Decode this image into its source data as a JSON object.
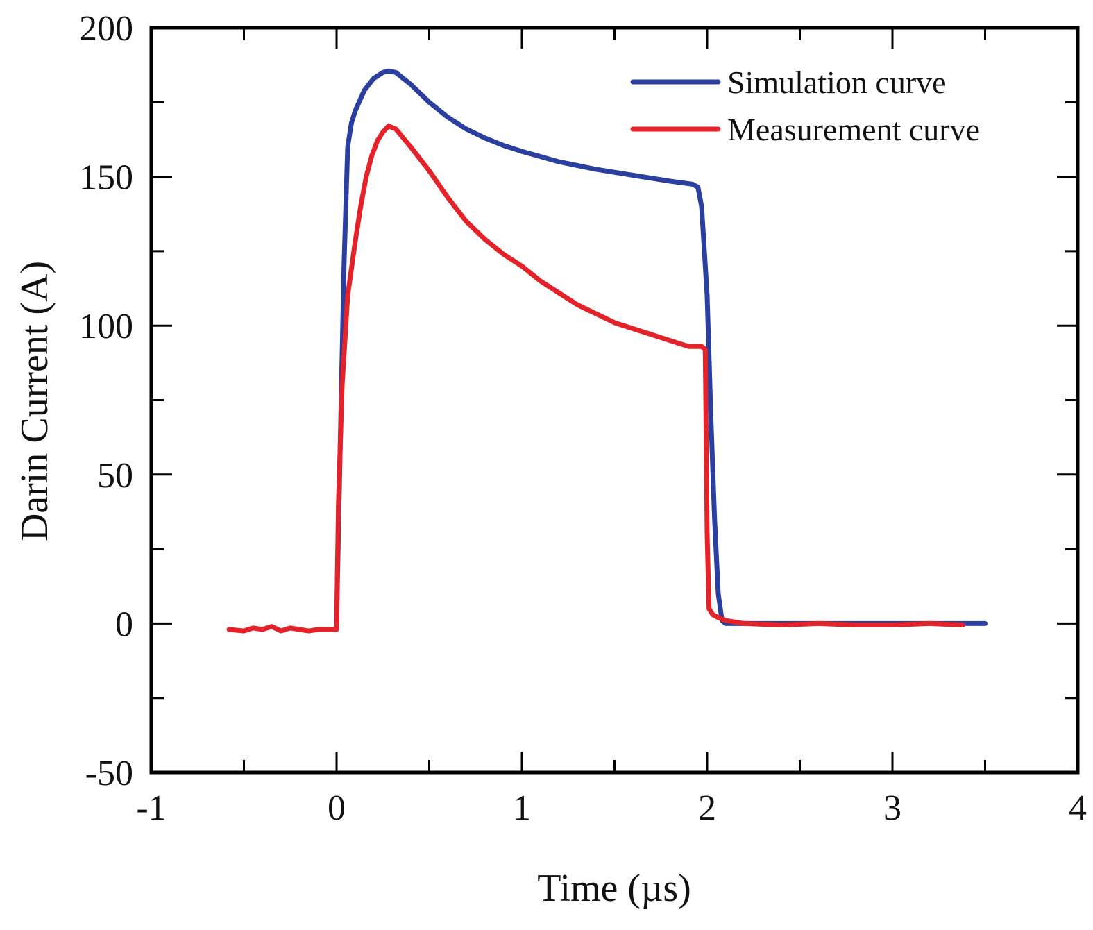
{
  "chart_data": {
    "type": "line",
    "title": "",
    "xlabel": "Time (µs)",
    "ylabel": "Darin Current (A)",
    "xlim": [
      -1,
      4
    ],
    "ylim": [
      -50,
      200
    ],
    "xticks": [
      -1,
      0,
      1,
      2,
      3,
      4
    ],
    "xtick_labels": [
      "-1",
      "0",
      "1",
      "2",
      "3",
      "4"
    ],
    "yticks": [
      -50,
      0,
      50,
      100,
      150,
      200
    ],
    "ytick_labels": [
      "-50",
      "0",
      "50",
      "100",
      "150",
      "200"
    ],
    "x_minor_step": 0.5,
    "y_minor_step": 25,
    "grid": false,
    "legend_position": "top-right",
    "series": [
      {
        "name": "Simulation curve",
        "color": "#2b3fa0",
        "x": [
          0.0,
          0.02,
          0.04,
          0.06,
          0.08,
          0.1,
          0.15,
          0.2,
          0.25,
          0.28,
          0.32,
          0.4,
          0.5,
          0.6,
          0.7,
          0.8,
          0.9,
          1.0,
          1.2,
          1.4,
          1.6,
          1.8,
          1.92,
          1.95,
          1.97,
          2.0,
          2.02,
          2.04,
          2.06,
          2.08,
          2.1,
          2.5,
          3.0,
          3.5
        ],
        "y": [
          0,
          60,
          120,
          160,
          168,
          172,
          179,
          183,
          185,
          185.5,
          185,
          181,
          175,
          170,
          166,
          163,
          160.5,
          158.5,
          155,
          152.5,
          150.5,
          148.5,
          147.5,
          146.5,
          140,
          110,
          70,
          35,
          10,
          1,
          0,
          0,
          0,
          0
        ]
      },
      {
        "name": "Measurement curve",
        "color": "#e3222a",
        "x": [
          -0.58,
          -0.5,
          -0.45,
          -0.4,
          -0.35,
          -0.3,
          -0.25,
          -0.2,
          -0.15,
          -0.1,
          -0.05,
          0.0,
          0.01,
          0.03,
          0.06,
          0.1,
          0.13,
          0.16,
          0.19,
          0.22,
          0.25,
          0.28,
          0.32,
          0.36,
          0.4,
          0.45,
          0.5,
          0.6,
          0.7,
          0.8,
          0.9,
          1.0,
          1.1,
          1.2,
          1.3,
          1.4,
          1.5,
          1.6,
          1.7,
          1.8,
          1.9,
          1.97,
          1.99,
          2.0,
          2.01,
          2.03,
          2.06,
          2.1,
          2.2,
          2.4,
          2.6,
          2.8,
          3.0,
          3.2,
          3.38
        ],
        "y": [
          -2,
          -2.5,
          -1.5,
          -2,
          -1,
          -2.5,
          -1.5,
          -2,
          -2.5,
          -2,
          -2,
          -2,
          40,
          80,
          110,
          128,
          140,
          150,
          157,
          162,
          165,
          167,
          166,
          163,
          160,
          156,
          152,
          143,
          135,
          129,
          124,
          120,
          115,
          111,
          107,
          104,
          101,
          99,
          97,
          95,
          93,
          93,
          92,
          30,
          5,
          3,
          2,
          1,
          0,
          -0.5,
          0,
          -0.5,
          -0.5,
          0,
          -0.5
        ]
      }
    ]
  }
}
